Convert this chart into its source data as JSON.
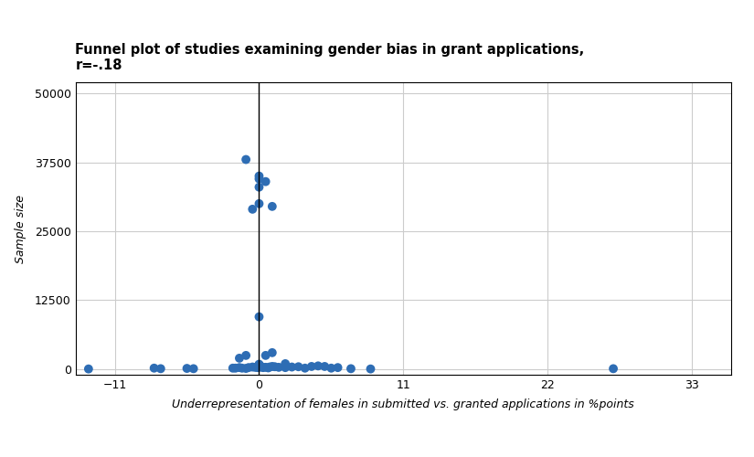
{
  "title": "Funnel plot of studies examining gender bias in grant applications,\nr=-.18",
  "xlabel": "Underrepresentation of females in submitted vs. granted applications in %points",
  "ylabel": "Sample size",
  "xlim": [
    -14,
    36
  ],
  "ylim": [
    -1000,
    52000
  ],
  "xticks": [
    -11,
    0,
    11,
    22,
    33
  ],
  "yticks": [
    0,
    12500,
    25000,
    37500,
    50000
  ],
  "vline_x": 0,
  "dot_color": "#2e6db4",
  "background_color": "#ffffff",
  "grid_color": "#cccccc",
  "points_x": [
    -13.0,
    -8.0,
    -7.5,
    -5.5,
    -5.0,
    -2.0,
    -1.8,
    -1.5,
    -1.3,
    -1.0,
    -0.8,
    -0.5,
    -0.3,
    -0.2,
    -0.1,
    0.0,
    0.0,
    0.0,
    0.0,
    0.0,
    0.1,
    0.2,
    0.3,
    0.5,
    0.7,
    0.8,
    1.0,
    1.2,
    1.5,
    2.0,
    2.5,
    3.0,
    3.5,
    4.0,
    4.5,
    5.0,
    5.5,
    6.0,
    7.0,
    8.5,
    27.0,
    -1.5,
    -1.0,
    0.0,
    0.5,
    1.0,
    2.0,
    0.0,
    0.5,
    0.0,
    -0.5,
    0.0,
    -1.0,
    0.0,
    1.0
  ],
  "points_y": [
    50,
    200,
    100,
    150,
    100,
    200,
    200,
    300,
    200,
    150,
    300,
    400,
    350,
    400,
    300,
    500,
    600,
    700,
    800,
    900,
    400,
    450,
    300,
    350,
    250,
    400,
    500,
    450,
    350,
    300,
    400,
    450,
    200,
    500,
    600,
    500,
    200,
    300,
    100,
    50,
    100,
    2000,
    2500,
    9500,
    2500,
    3000,
    1000,
    33000,
    34000,
    35000,
    29000,
    30000,
    38000,
    34500,
    29500
  ]
}
